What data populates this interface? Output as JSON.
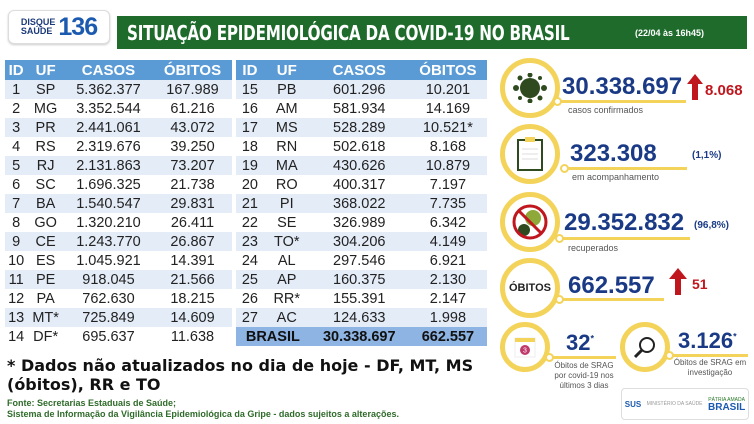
{
  "logo": {
    "line1": "DISQUE",
    "line2": "SAÚDE",
    "number": "136"
  },
  "header": {
    "title": "SITUAÇÃO EPIDEMIOLÓGICA DA COVID-19 NO BRASIL",
    "date": "(22/04 às 16h45)"
  },
  "table": {
    "columns": [
      "ID",
      "UF",
      "CASOS",
      "ÓBITOS"
    ],
    "left": [
      [
        "1",
        "SP",
        "5.362.377",
        "167.989",
        ""
      ],
      [
        "2",
        "MG",
        "3.352.544",
        "61.216",
        ""
      ],
      [
        "3",
        "PR",
        "2.441.061",
        "43.072",
        ""
      ],
      [
        "4",
        "RS",
        "2.319.676",
        "39.250",
        ""
      ],
      [
        "5",
        "RJ",
        "2.131.863",
        "73.207",
        ""
      ],
      [
        "6",
        "SC",
        "1.696.325",
        "21.738",
        ""
      ],
      [
        "7",
        "BA",
        "1.540.547",
        "29.831",
        ""
      ],
      [
        "8",
        "GO",
        "1.320.210",
        "26.411",
        ""
      ],
      [
        "9",
        "CE",
        "1.243.770",
        "26.867",
        ""
      ],
      [
        "10",
        "ES",
        "1.045.921",
        "14.391",
        ""
      ],
      [
        "11",
        "PE",
        "918.045",
        "21.566",
        ""
      ],
      [
        "12",
        "PA",
        "762.630",
        "18.215",
        ""
      ],
      [
        "13",
        "MT*",
        "725.849",
        "14.609",
        ""
      ],
      [
        "14",
        "DF*",
        "695.637",
        "11.638",
        ""
      ]
    ],
    "right": [
      [
        "15",
        "PB",
        "601.296",
        "10.201"
      ],
      [
        "16",
        "AM",
        "581.934",
        "14.169"
      ],
      [
        "17",
        "MS",
        "528.289",
        "10.521*"
      ],
      [
        "18",
        "RN",
        "502.618",
        "8.168"
      ],
      [
        "19",
        "MA",
        "430.626",
        "10.879"
      ],
      [
        "20",
        "RO",
        "400.317",
        "7.197"
      ],
      [
        "21",
        "PI",
        "368.022",
        "7.735"
      ],
      [
        "22",
        "SE",
        "326.989",
        "6.342"
      ],
      [
        "23",
        "TO*",
        "304.206",
        "4.149"
      ],
      [
        "24",
        "AL",
        "297.546",
        "6.921"
      ],
      [
        "25",
        "AP",
        "160.375",
        "2.130"
      ],
      [
        "26",
        "RR*",
        "155.391",
        "2.147"
      ],
      [
        "27",
        "AC",
        "124.633",
        "1.998"
      ]
    ],
    "total": {
      "label": "BRASIL",
      "casos": "30.338.697",
      "obitos": "662.557"
    }
  },
  "stats": {
    "confirmed": {
      "value": "30.338.697",
      "label": "casos confirmados",
      "new": "8.068",
      "icon": "virus-icon"
    },
    "monitoring": {
      "value": "323.308",
      "label": "em acompanhamento",
      "pct": "(1,1%)",
      "icon": "clipboard-icon"
    },
    "recovered": {
      "value": "29.352.832",
      "label": "recuperados",
      "pct": "(96,8%)",
      "icon": "no-virus-icon"
    },
    "deaths": {
      "badge": "ÓBITOS",
      "value": "662.557",
      "new": "51"
    },
    "srag3": {
      "value": "32",
      "star": "*",
      "label": "Óbitos de SRAG por covid-19 nos últimos 3 dias",
      "icon": "calendar-icon",
      "cal": "3"
    },
    "sraginv": {
      "value": "3.126",
      "star": "*",
      "label": "Óbitos de SRAG em investigação",
      "icon": "magnifier-icon"
    }
  },
  "note": "* Dados não atualizados no dia de hoje - DF, MT, MS (óbitos), RR e TO",
  "source": {
    "line1": "Fonte: Secretarias Estaduais de Saúde;",
    "line2": "Sistema de Informação da Vigilância Epidemiológica da Gripe - dados sujeitos a alterações."
  },
  "footer_logos": {
    "sus": "SUS",
    "ministry": "MINISTÉRIO DA SAÚDE",
    "brasil": "BRASIL",
    "motto": "PÁTRIA AMADA"
  },
  "colors": {
    "green": "#1e6b2c",
    "header_blue": "#5b9bd5",
    "number_blue": "#1a3a86",
    "yellow": "#f3d35a",
    "red": "#c0171e"
  }
}
